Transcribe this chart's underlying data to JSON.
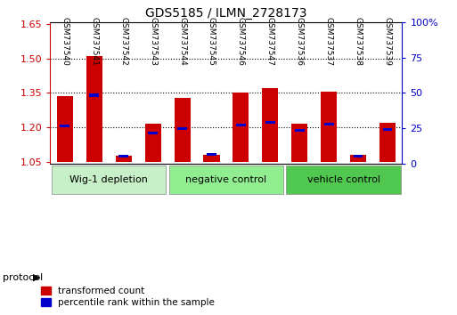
{
  "title": "GDS5185 / ILMN_2728173",
  "samples": [
    "GSM737540",
    "GSM737541",
    "GSM737542",
    "GSM737543",
    "GSM737544",
    "GSM737545",
    "GSM737546",
    "GSM737547",
    "GSM737536",
    "GSM737537",
    "GSM737538",
    "GSM737539"
  ],
  "red_values": [
    1.335,
    1.51,
    1.075,
    1.215,
    1.33,
    1.08,
    1.35,
    1.37,
    1.215,
    1.355,
    1.08,
    1.22
  ],
  "blue_values": [
    1.205,
    1.34,
    1.075,
    1.175,
    1.195,
    1.08,
    1.21,
    1.22,
    1.185,
    1.215,
    1.075,
    1.19
  ],
  "ylim_left": [
    1.04,
    1.66
  ],
  "ylim_right": [
    0,
    100
  ],
  "yticks_left": [
    1.05,
    1.2,
    1.35,
    1.5,
    1.65
  ],
  "yticks_right": [
    0,
    25,
    50,
    75,
    100
  ],
  "ytick_labels_left": [
    "1.05",
    "1.20",
    "1.35",
    "1.50",
    "1.65"
  ],
  "ytick_labels_right": [
    "0",
    "25",
    "50",
    "75",
    "100%"
  ],
  "base_value": 1.05,
  "groups": [
    {
      "label": "Wig-1 depletion",
      "start": 0,
      "end": 4,
      "color": "#c8f0c8"
    },
    {
      "label": "negative control",
      "start": 4,
      "end": 8,
      "color": "#90ee90"
    },
    {
      "label": "vehicle control",
      "start": 8,
      "end": 12,
      "color": "#50c850"
    }
  ],
  "protocol_label": "protocol",
  "legend_red_label": "transformed count",
  "legend_blue_label": "percentile rank within the sample",
  "bar_color_red": "#cc0000",
  "bar_color_blue": "#0000cc",
  "bar_width": 0.55,
  "background_color": "#ffffff",
  "plot_bg_color": "#ffffff",
  "grid_color": "#000000",
  "left_axis_color": "#cc0000",
  "right_axis_color": "#0000cc"
}
